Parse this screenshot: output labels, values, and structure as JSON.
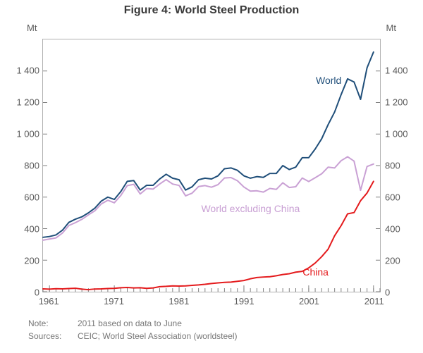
{
  "type": "line",
  "title": "Figure 4: World Steel Production",
  "axis_unit_left": "Mt",
  "axis_unit_right": "Mt",
  "x": {
    "min": 1960,
    "max": 2012,
    "tick_years": [
      1961,
      1971,
      1981,
      1991,
      2001,
      2011
    ],
    "minor_step": 1
  },
  "y": {
    "min": 0,
    "max": 1600,
    "ticks": [
      0,
      200,
      400,
      600,
      800,
      1000,
      1200,
      1400
    ]
  },
  "colors": {
    "world": "#1f4e79",
    "world_ex_china": "#c9a0d4",
    "china": "#e41a1c",
    "axis": "#b0b0b0",
    "text": "#5a5a5a",
    "background": "#ffffff"
  },
  "line_width": 2,
  "fontsize": {
    "title": 16,
    "axis": 13,
    "series_label": 14,
    "note": 12
  },
  "series": {
    "world": {
      "label": "World",
      "label_pos": {
        "x": 2004,
        "y": 1340
      },
      "years": [
        1960,
        1961,
        1962,
        1963,
        1964,
        1965,
        1966,
        1967,
        1968,
        1969,
        1970,
        1971,
        1972,
        1973,
        1974,
        1975,
        1976,
        1977,
        1978,
        1979,
        1980,
        1981,
        1982,
        1983,
        1984,
        1985,
        1986,
        1987,
        1988,
        1989,
        1990,
        1991,
        1992,
        1993,
        1994,
        1995,
        1996,
        1997,
        1998,
        1999,
        2000,
        2001,
        2002,
        2003,
        2004,
        2005,
        2006,
        2007,
        2008,
        2009,
        2010,
        2011
      ],
      "values": [
        345,
        350,
        360,
        390,
        440,
        460,
        475,
        500,
        530,
        575,
        600,
        585,
        635,
        700,
        705,
        645,
        675,
        675,
        715,
        745,
        720,
        710,
        645,
        665,
        710,
        720,
        715,
        735,
        780,
        785,
        770,
        735,
        720,
        730,
        725,
        750,
        750,
        800,
        775,
        790,
        850,
        850,
        905,
        970,
        1060,
        1140,
        1250,
        1350,
        1330,
        1220,
        1420,
        1520
      ]
    },
    "world_ex_china": {
      "label": "World excluding China",
      "label_pos": {
        "x": 1992,
        "y": 530
      },
      "years": [
        1960,
        1961,
        1962,
        1963,
        1964,
        1965,
        1966,
        1967,
        1968,
        1969,
        1970,
        1971,
        1972,
        1973,
        1974,
        1975,
        1976,
        1977,
        1978,
        1979,
        1980,
        1981,
        1982,
        1983,
        1984,
        1985,
        1986,
        1987,
        1988,
        1989,
        1990,
        1991,
        1992,
        1993,
        1994,
        1995,
        1996,
        1997,
        1998,
        1999,
        2000,
        2001,
        2002,
        2003,
        2004,
        2005,
        2006,
        2007,
        2008,
        2009,
        2010,
        2011
      ],
      "values": [
        327,
        334,
        341,
        372,
        420,
        438,
        459,
        487,
        513,
        557,
        580,
        564,
        610,
        673,
        681,
        620,
        654,
        651,
        683,
        711,
        683,
        674,
        608,
        625,
        667,
        673,
        663,
        679,
        721,
        724,
        704,
        664,
        638,
        640,
        632,
        655,
        649,
        691,
        661,
        666,
        721,
        699,
        723,
        748,
        790,
        785,
        831,
        856,
        828,
        643,
        794,
        810
      ]
    },
    "china": {
      "label": "China",
      "label_pos": {
        "x": 2002,
        "y": 130
      },
      "years": [
        1960,
        1961,
        1962,
        1963,
        1964,
        1965,
        1966,
        1967,
        1968,
        1969,
        1970,
        1971,
        1972,
        1973,
        1974,
        1975,
        1976,
        1977,
        1978,
        1979,
        1980,
        1981,
        1982,
        1983,
        1984,
        1985,
        1986,
        1987,
        1988,
        1989,
        1990,
        1991,
        1992,
        1993,
        1994,
        1995,
        1996,
        1997,
        1998,
        1999,
        2000,
        2001,
        2002,
        2003,
        2004,
        2005,
        2006,
        2007,
        2008,
        2009,
        2010,
        2011
      ],
      "values": [
        18,
        16,
        19,
        18,
        20,
        22,
        16,
        13,
        17,
        18,
        20,
        21,
        25,
        27,
        24,
        25,
        21,
        24,
        32,
        34,
        37,
        36,
        37,
        40,
        43,
        47,
        52,
        56,
        59,
        61,
        66,
        71,
        82,
        90,
        93,
        95,
        101,
        109,
        114,
        124,
        129,
        151,
        182,
        222,
        270,
        355,
        419,
        494,
        502,
        577,
        626,
        700
      ]
    }
  },
  "note_label": "Note:",
  "note_text": "2011 based on data to June",
  "sources_label": "Sources:",
  "sources_text": "CEIC; World Steel Association (worldsteel)",
  "xtick_labels": {
    "1961": "1961",
    "1971": "1971",
    "1981": "1981",
    "1991": "1991",
    "2001": "2001",
    "2011": "2011"
  },
  "ytick_labels": {
    "0": "0",
    "200": "200",
    "400": "400",
    "600": "600",
    "800": "800",
    "1000": "1 000",
    "1200": "1 200",
    "1400": "1 400"
  }
}
